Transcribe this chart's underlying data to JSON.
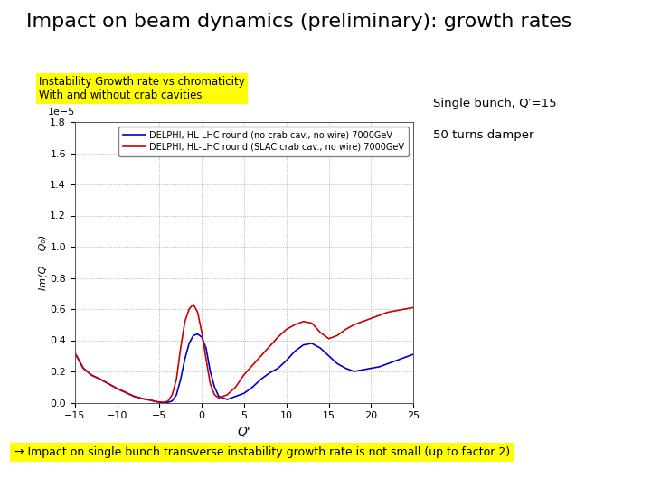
{
  "title": "Impact on beam dynamics (preliminary): growth rates",
  "title_fontsize": 16,
  "subtitle1": "Instability Growth rate vs chromaticity",
  "subtitle2": "With and without crab cavities",
  "subtitle_bg": "#ffff00",
  "annotation": "→ Impact on single bunch transverse instability growth rate is not small (up to factor 2)",
  "annotation_bg": "#ffff00",
  "side_text_line1": "Single bunch, Q′=15",
  "side_text_line2": "50 turns damper",
  "xlabel": "Q'",
  "ylabel": "Im(Q − Q₀)",
  "ylabel_exponent": "1e−5",
  "xlim": [
    -15,
    25
  ],
  "ylim": [
    0.0,
    1.8
  ],
  "yticks": [
    0.0,
    0.2,
    0.4,
    0.6,
    0.8,
    1.0,
    1.2,
    1.4,
    1.6,
    1.8
  ],
  "xticks": [
    -15,
    -10,
    -5,
    0,
    5,
    10,
    15,
    20,
    25
  ],
  "legend1": "DELPHI, HL-LHC round (no crab cav., no wire) 7000GeV",
  "legend2": "DELPHI, HL-LHC round (SLAC crab cav., no wire) 7000GeV",
  "color_blue": "#0000cc",
  "color_red": "#cc0000",
  "left_bar_color": "#3a5aa0",
  "background": "#ffffff",
  "blue_x": [
    -15,
    -14,
    -13,
    -12,
    -11,
    -10,
    -9,
    -8,
    -7,
    -6,
    -5.5,
    -5,
    -4.5,
    -4,
    -3.5,
    -3,
    -2.5,
    -2,
    -1.5,
    -1,
    -0.5,
    0,
    0.5,
    1,
    1.5,
    2,
    3,
    4,
    5,
    6,
    7,
    8,
    9,
    10,
    11,
    12,
    13,
    14,
    15,
    16,
    17,
    18,
    19,
    20,
    21,
    22,
    23,
    24,
    25
  ],
  "blue_y": [
    0.32,
    0.22,
    0.175,
    0.15,
    0.12,
    0.09,
    0.065,
    0.04,
    0.025,
    0.015,
    0.007,
    0.003,
    0.001,
    0.002,
    0.01,
    0.05,
    0.15,
    0.28,
    0.38,
    0.43,
    0.44,
    0.42,
    0.35,
    0.2,
    0.1,
    0.04,
    0.02,
    0.04,
    0.06,
    0.1,
    0.15,
    0.19,
    0.22,
    0.27,
    0.33,
    0.37,
    0.38,
    0.35,
    0.3,
    0.25,
    0.22,
    0.2,
    0.21,
    0.22,
    0.23,
    0.25,
    0.27,
    0.29,
    0.31
  ],
  "red_x": [
    -15,
    -14,
    -13,
    -12,
    -11,
    -10,
    -9,
    -8,
    -7,
    -6,
    -5.5,
    -5,
    -4.5,
    -4,
    -3.5,
    -3,
    -2.5,
    -2,
    -1.5,
    -1,
    -0.5,
    0,
    0.5,
    1,
    1.5,
    2,
    3,
    4,
    5,
    6,
    7,
    8,
    9,
    10,
    11,
    12,
    13,
    14,
    15,
    16,
    17,
    18,
    19,
    20,
    21,
    22,
    23,
    24,
    25
  ],
  "red_y": [
    0.32,
    0.22,
    0.175,
    0.15,
    0.12,
    0.09,
    0.065,
    0.04,
    0.025,
    0.015,
    0.007,
    0.003,
    0.001,
    0.01,
    0.05,
    0.15,
    0.35,
    0.52,
    0.6,
    0.63,
    0.58,
    0.45,
    0.28,
    0.12,
    0.05,
    0.03,
    0.05,
    0.1,
    0.18,
    0.24,
    0.3,
    0.36,
    0.42,
    0.47,
    0.5,
    0.52,
    0.51,
    0.45,
    0.41,
    0.43,
    0.47,
    0.5,
    0.52,
    0.54,
    0.56,
    0.58,
    0.59,
    0.6,
    0.61
  ]
}
